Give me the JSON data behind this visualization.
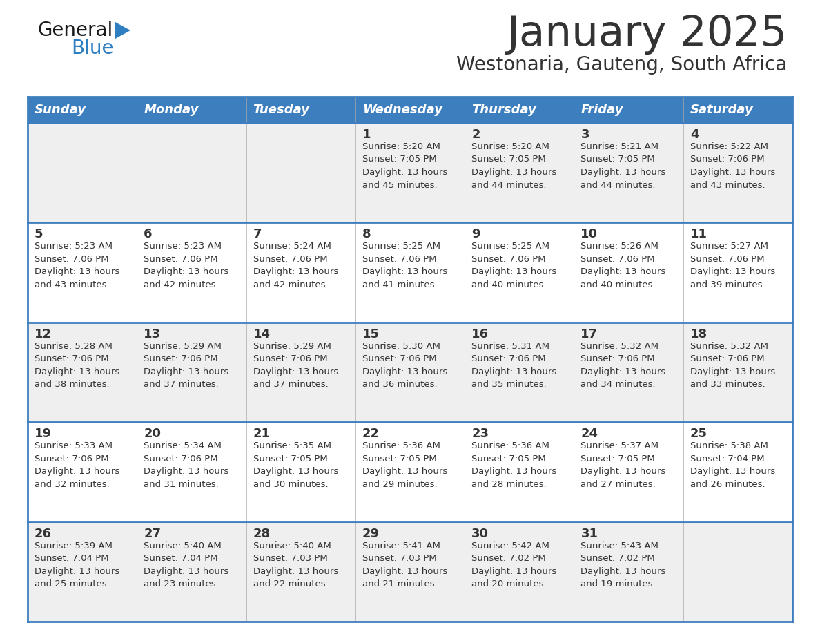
{
  "title": "January 2025",
  "subtitle": "Westonaria, Gauteng, South Africa",
  "header_bg": "#3d7ebf",
  "header_text_color": "#ffffff",
  "cell_bg_light": "#efefef",
  "cell_bg_white": "#ffffff",
  "border_color": "#3d7ebf",
  "text_color": "#333333",
  "days_of_week": [
    "Sunday",
    "Monday",
    "Tuesday",
    "Wednesday",
    "Thursday",
    "Friday",
    "Saturday"
  ],
  "weeks": [
    [
      {
        "day": "",
        "info": ""
      },
      {
        "day": "",
        "info": ""
      },
      {
        "day": "",
        "info": ""
      },
      {
        "day": "1",
        "info": "Sunrise: 5:20 AM\nSunset: 7:05 PM\nDaylight: 13 hours\nand 45 minutes."
      },
      {
        "day": "2",
        "info": "Sunrise: 5:20 AM\nSunset: 7:05 PM\nDaylight: 13 hours\nand 44 minutes."
      },
      {
        "day": "3",
        "info": "Sunrise: 5:21 AM\nSunset: 7:05 PM\nDaylight: 13 hours\nand 44 minutes."
      },
      {
        "day": "4",
        "info": "Sunrise: 5:22 AM\nSunset: 7:06 PM\nDaylight: 13 hours\nand 43 minutes."
      }
    ],
    [
      {
        "day": "5",
        "info": "Sunrise: 5:23 AM\nSunset: 7:06 PM\nDaylight: 13 hours\nand 43 minutes."
      },
      {
        "day": "6",
        "info": "Sunrise: 5:23 AM\nSunset: 7:06 PM\nDaylight: 13 hours\nand 42 minutes."
      },
      {
        "day": "7",
        "info": "Sunrise: 5:24 AM\nSunset: 7:06 PM\nDaylight: 13 hours\nand 42 minutes."
      },
      {
        "day": "8",
        "info": "Sunrise: 5:25 AM\nSunset: 7:06 PM\nDaylight: 13 hours\nand 41 minutes."
      },
      {
        "day": "9",
        "info": "Sunrise: 5:25 AM\nSunset: 7:06 PM\nDaylight: 13 hours\nand 40 minutes."
      },
      {
        "day": "10",
        "info": "Sunrise: 5:26 AM\nSunset: 7:06 PM\nDaylight: 13 hours\nand 40 minutes."
      },
      {
        "day": "11",
        "info": "Sunrise: 5:27 AM\nSunset: 7:06 PM\nDaylight: 13 hours\nand 39 minutes."
      }
    ],
    [
      {
        "day": "12",
        "info": "Sunrise: 5:28 AM\nSunset: 7:06 PM\nDaylight: 13 hours\nand 38 minutes."
      },
      {
        "day": "13",
        "info": "Sunrise: 5:29 AM\nSunset: 7:06 PM\nDaylight: 13 hours\nand 37 minutes."
      },
      {
        "day": "14",
        "info": "Sunrise: 5:29 AM\nSunset: 7:06 PM\nDaylight: 13 hours\nand 37 minutes."
      },
      {
        "day": "15",
        "info": "Sunrise: 5:30 AM\nSunset: 7:06 PM\nDaylight: 13 hours\nand 36 minutes."
      },
      {
        "day": "16",
        "info": "Sunrise: 5:31 AM\nSunset: 7:06 PM\nDaylight: 13 hours\nand 35 minutes."
      },
      {
        "day": "17",
        "info": "Sunrise: 5:32 AM\nSunset: 7:06 PM\nDaylight: 13 hours\nand 34 minutes."
      },
      {
        "day": "18",
        "info": "Sunrise: 5:32 AM\nSunset: 7:06 PM\nDaylight: 13 hours\nand 33 minutes."
      }
    ],
    [
      {
        "day": "19",
        "info": "Sunrise: 5:33 AM\nSunset: 7:06 PM\nDaylight: 13 hours\nand 32 minutes."
      },
      {
        "day": "20",
        "info": "Sunrise: 5:34 AM\nSunset: 7:06 PM\nDaylight: 13 hours\nand 31 minutes."
      },
      {
        "day": "21",
        "info": "Sunrise: 5:35 AM\nSunset: 7:05 PM\nDaylight: 13 hours\nand 30 minutes."
      },
      {
        "day": "22",
        "info": "Sunrise: 5:36 AM\nSunset: 7:05 PM\nDaylight: 13 hours\nand 29 minutes."
      },
      {
        "day": "23",
        "info": "Sunrise: 5:36 AM\nSunset: 7:05 PM\nDaylight: 13 hours\nand 28 minutes."
      },
      {
        "day": "24",
        "info": "Sunrise: 5:37 AM\nSunset: 7:05 PM\nDaylight: 13 hours\nand 27 minutes."
      },
      {
        "day": "25",
        "info": "Sunrise: 5:38 AM\nSunset: 7:04 PM\nDaylight: 13 hours\nand 26 minutes."
      }
    ],
    [
      {
        "day": "26",
        "info": "Sunrise: 5:39 AM\nSunset: 7:04 PM\nDaylight: 13 hours\nand 25 minutes."
      },
      {
        "day": "27",
        "info": "Sunrise: 5:40 AM\nSunset: 7:04 PM\nDaylight: 13 hours\nand 23 minutes."
      },
      {
        "day": "28",
        "info": "Sunrise: 5:40 AM\nSunset: 7:03 PM\nDaylight: 13 hours\nand 22 minutes."
      },
      {
        "day": "29",
        "info": "Sunrise: 5:41 AM\nSunset: 7:03 PM\nDaylight: 13 hours\nand 21 minutes."
      },
      {
        "day": "30",
        "info": "Sunrise: 5:42 AM\nSunset: 7:02 PM\nDaylight: 13 hours\nand 20 minutes."
      },
      {
        "day": "31",
        "info": "Sunrise: 5:43 AM\nSunset: 7:02 PM\nDaylight: 13 hours\nand 19 minutes."
      },
      {
        "day": "",
        "info": ""
      }
    ]
  ],
  "logo_general_color": "#1a1a1a",
  "logo_blue_color": "#2e7ec2"
}
